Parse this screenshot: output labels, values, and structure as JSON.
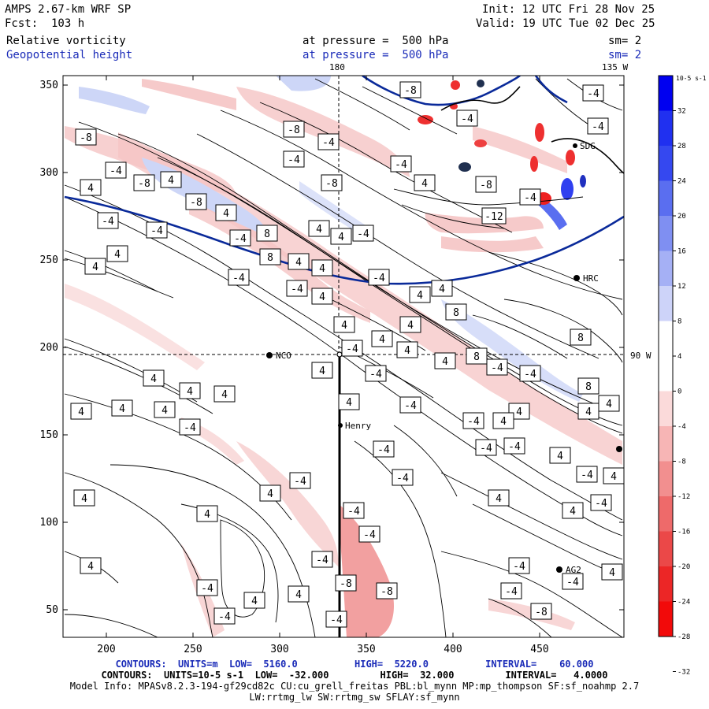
{
  "header": {
    "title": "AMPS 2.67-km WRF SP",
    "forecast": "Fcst:  103 h",
    "init": "Init: 12 UTC Fri 28 Nov 25",
    "valid": "Valid: 19 UTC Tue 02 Dec 25",
    "field1": "Relative vorticity",
    "field1_level": "at pressure =  500 hPa",
    "field1_smooth": "sm= 2",
    "field2": "Geopotential height",
    "field2_level": "at pressure =  500 hPa",
    "field2_smooth": "sm= 2",
    "top_lon_left": "180",
    "top_lon_right": "135 W",
    "right_lat": "90 W"
  },
  "axes": {
    "x_ticks": [
      "200",
      "250",
      "300",
      "350",
      "400",
      "450"
    ],
    "y_ticks": [
      "350",
      "300",
      "250",
      "200",
      "150",
      "100",
      "50"
    ]
  },
  "stations": [
    {
      "name": "NCO"
    },
    {
      "name": "Henry"
    },
    {
      "name": "HRC"
    },
    {
      "name": "AG2"
    },
    {
      "name": "SDG"
    }
  ],
  "contour_labels": [
    "-8",
    "-4",
    "4",
    "8",
    "-12"
  ],
  "colorbar": {
    "units": "10-5 s-1",
    "labels": [
      "32",
      "28",
      "24",
      "20",
      "16",
      "12",
      "8",
      "4",
      "0",
      "-4",
      "-8",
      "-12",
      "-16",
      "-20",
      "-24",
      "-28",
      "-32"
    ],
    "colors": [
      "#0000f0",
      "#2030f0",
      "#3548f0",
      "#5a6ef0",
      "#7f8ff2",
      "#a5b0f5",
      "#cdd3f9",
      "#ffffff",
      "#ffffff",
      "#fbdada",
      "#f7b5b5",
      "#f28f8f",
      "#ee6a6a",
      "#eb4848",
      "#ec2626",
      "#f20a0a"
    ]
  },
  "footer": {
    "line1": "CONTOURS:  UNITS=m  LOW=  5160.0          HIGH=  5220.0          INTERVAL=    60.000",
    "line2": "CONTOURS:  UNITS=10-5 s-1  LOW=  -32.000         HIGH=  32.000         INTERVAL=   4.0000",
    "line3": "Model Info: MPASv8.2.3-194-gf29cd82c CU:cu_grell_freitas PBL:bl_mynn MP:mp_thompson SF:sf_noahmp 2.7",
    "line4": "LW:rrtmg_lw SW:rrtmg_sw SFLAY:sf_mynn"
  },
  "colors": {
    "accent_blue": "#1a2bb8",
    "height_contour": "#0a2a9a",
    "positive_fill": "#f2a9a9",
    "negative_fill": "#c8d2f5"
  }
}
